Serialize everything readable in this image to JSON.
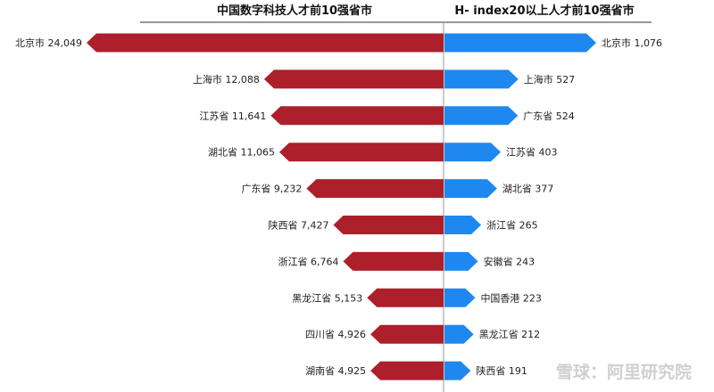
{
  "chart_data": [
    {
      "type": "bar",
      "orientation": "horizontal",
      "direction": "leftward",
      "title": "中国数字科技人才前10强省市",
      "color": "#ad1f2a",
      "categories": [
        "北京市",
        "上海市",
        "江苏省",
        "湖北省",
        "广东省",
        "陕西省",
        "浙江省",
        "黑龙江省",
        "四川省",
        "湖南省"
      ],
      "values": [
        24049,
        12088,
        11641,
        11065,
        9232,
        7427,
        6764,
        5153,
        4926,
        4925
      ],
      "labels": [
        "北京市 24,049",
        "上海市  12,088",
        "江苏省  11,641",
        "湖北省  11,065",
        "广东省  9,232",
        "陕西省 7,427",
        "浙江省   6,764",
        "黑龙江省 5,153",
        "四川省 4,926",
        "湖南省  4,925"
      ]
    },
    {
      "type": "bar",
      "orientation": "horizontal",
      "direction": "rightward",
      "title": "H- index20以上人才前10强省市",
      "color": "#1e88f0",
      "categories": [
        "北京市",
        "上海市",
        "广东省",
        "江苏省",
        "湖北省",
        "浙江省",
        "安徽省",
        "中国香港",
        "黑龙江省",
        "陕西省"
      ],
      "values": [
        1076,
        527,
        524,
        403,
        377,
        265,
        243,
        223,
        212,
        191
      ],
      "labels": [
        "北京市  1,076",
        "上海市  527",
        "广东省  524",
        "江苏省  403",
        "湖北省  377",
        "浙江省  265",
        "安徽省  243",
        "中国香港   223",
        "黑龙江省  212",
        "陕西省 191"
      ]
    }
  ],
  "watermark": "雪球：阿里研究院"
}
